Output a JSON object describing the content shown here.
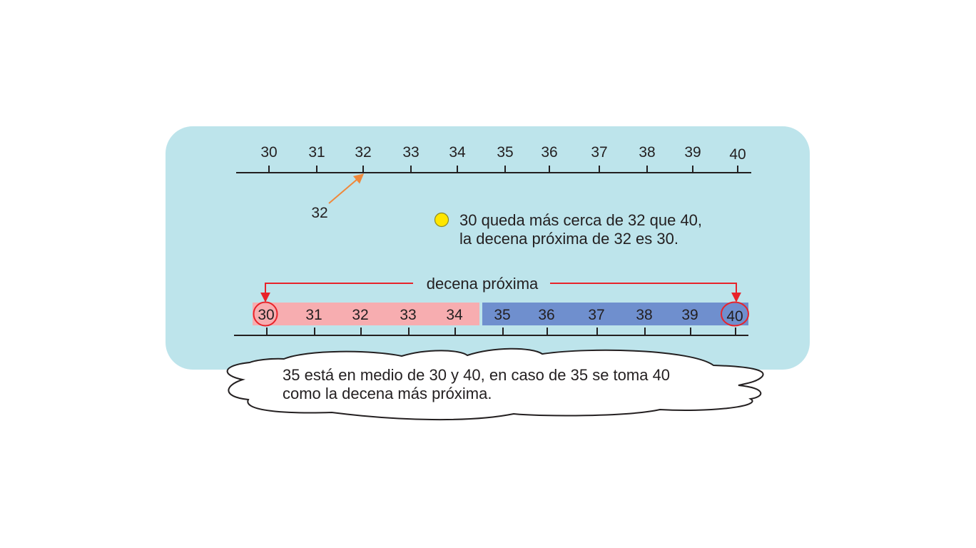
{
  "panel": {
    "background": "#bde4eb"
  },
  "number_line_top": {
    "ticks": [
      "30",
      "31",
      "32",
      "33",
      "34",
      "35",
      "36",
      "37",
      "38",
      "39",
      "40"
    ],
    "pointer_label": "32",
    "pointer_color": "#f0883a"
  },
  "note": {
    "bullet_color": "#ffe600",
    "line1": "30 queda más cerca de 32 que 40,",
    "line2": "la decena próxima de 32 es 30."
  },
  "number_line_bottom": {
    "heading": "decena próxima",
    "arrow_color": "#e8232a",
    "ticks": [
      "30",
      "31",
      "32",
      "33",
      "34",
      "35",
      "36",
      "37",
      "38",
      "39",
      "40"
    ],
    "left_band_color": "#f7adb0",
    "right_band_color": "#6f8fce",
    "circled": [
      "30",
      "40"
    ]
  },
  "cloud": {
    "line1": "35 está en medio de 30 y 40, en caso de 35 se toma 40",
    "line2": "como la decena más próxima."
  }
}
